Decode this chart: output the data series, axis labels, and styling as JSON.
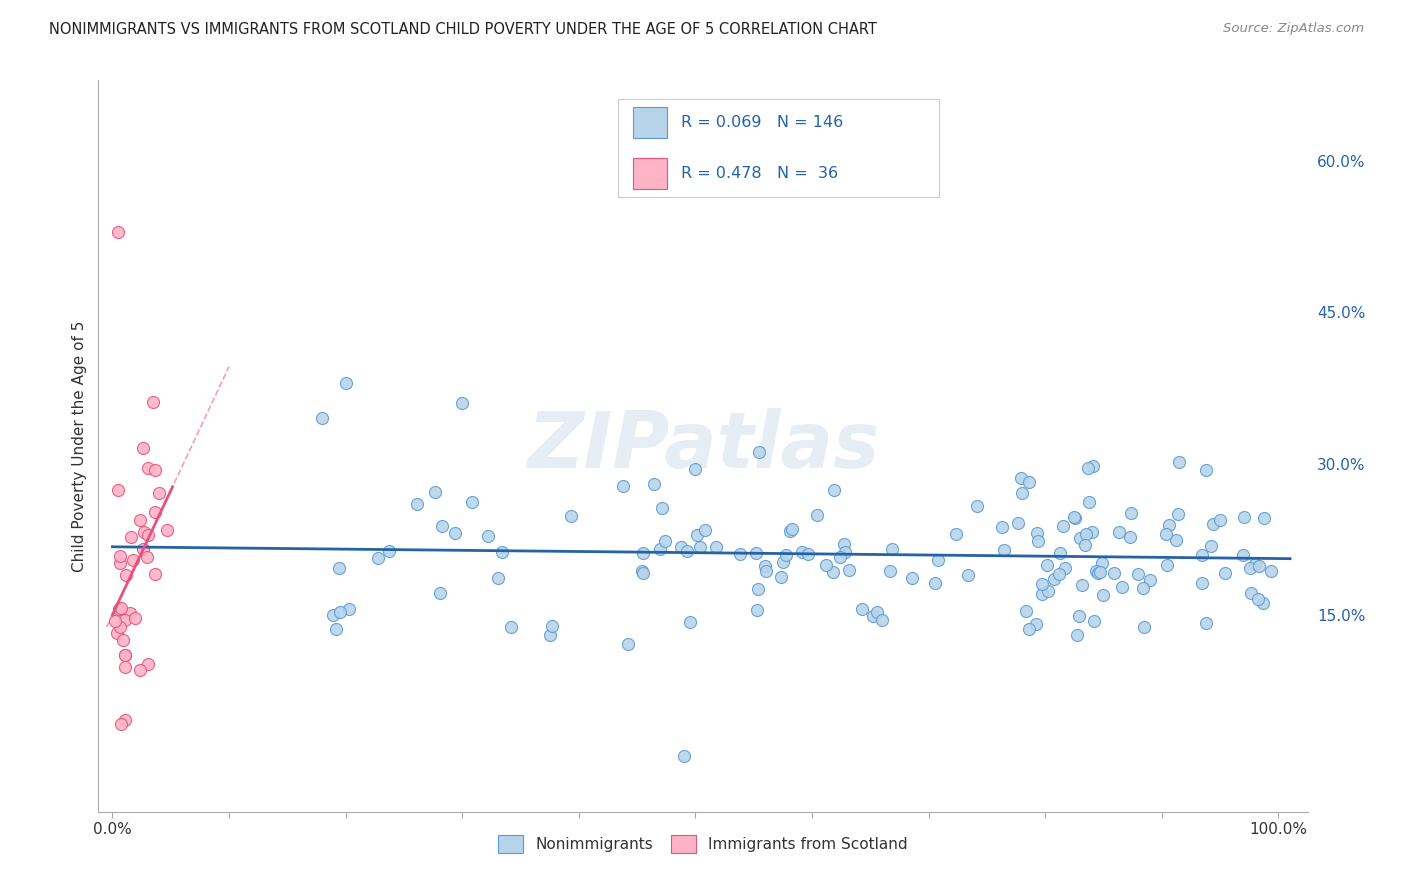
{
  "title": "NONIMMIGRANTS VS IMMIGRANTS FROM SCOTLAND CHILD POVERTY UNDER THE AGE OF 5 CORRELATION CHART",
  "source": "Source: ZipAtlas.com",
  "ylabel": "Child Poverty Under the Age of 5",
  "R_nonimm": 0.069,
  "N_nonimm": 146,
  "R_imm": 0.478,
  "N_imm": 36,
  "nonimm_fill": "#b8d4ea",
  "nonimm_edge": "#5b9bd5",
  "imm_fill": "#ffb3c6",
  "imm_edge": "#e8517a",
  "reg_blue": "#2563a8",
  "reg_pink": "#e8517a",
  "watermark": "ZIPatlas",
  "watermark_color": "#c8d8e8",
  "grid_color": "#e5e5e5",
  "background_color": "#ffffff",
  "title_color": "#222222",
  "source_color": "#888888",
  "axis_label_color": "#333333",
  "tick_color": "#2563a8",
  "y_ticks": [
    0.15,
    0.3,
    0.45,
    0.6
  ],
  "y_tick_labels": [
    "15.0%",
    "30.0%",
    "45.0%",
    "60.0%"
  ],
  "xlim": [
    -0.012,
    1.025
  ],
  "ylim": [
    -0.045,
    0.68
  ]
}
